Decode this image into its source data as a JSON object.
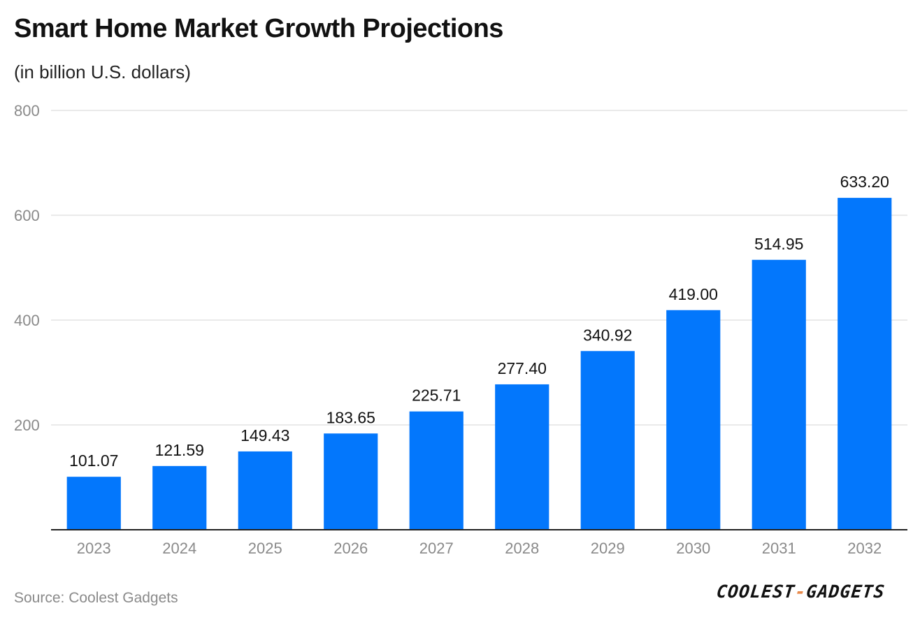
{
  "header": {
    "title": "Smart Home Market Growth Projections",
    "subtitle": "(in billion U.S. dollars)"
  },
  "footer": {
    "source": "Source: Coolest Gadgets",
    "logo_left": "COOLEST",
    "logo_dash": "-",
    "logo_right": "GADGETS"
  },
  "colors": {
    "bar": "#0377FC",
    "grid": "#e3e3e3",
    "axis": "#222222",
    "tick_text": "#8a8a8a",
    "label_text": "#111111",
    "logo_accent": "#e8894a"
  },
  "chart_data": {
    "type": "bar",
    "title": "Smart Home Market Growth Projections",
    "subtitle": "(in billion U.S. dollars)",
    "xlabel": "",
    "ylabel": "",
    "categories": [
      "2023",
      "2024",
      "2025",
      "2026",
      "2027",
      "2028",
      "2029",
      "2030",
      "2031",
      "2032"
    ],
    "values": [
      101.07,
      121.59,
      149.43,
      183.65,
      225.71,
      277.4,
      340.92,
      419.0,
      514.95,
      633.2
    ],
    "value_labels": [
      "101.07",
      "121.59",
      "149.43",
      "183.65",
      "225.71",
      "277.40",
      "340.92",
      "419.00",
      "514.95",
      "633.20"
    ],
    "ylim": [
      0,
      800
    ],
    "yticks": [
      200,
      400,
      600,
      800
    ],
    "grid": true,
    "legend": "none"
  }
}
